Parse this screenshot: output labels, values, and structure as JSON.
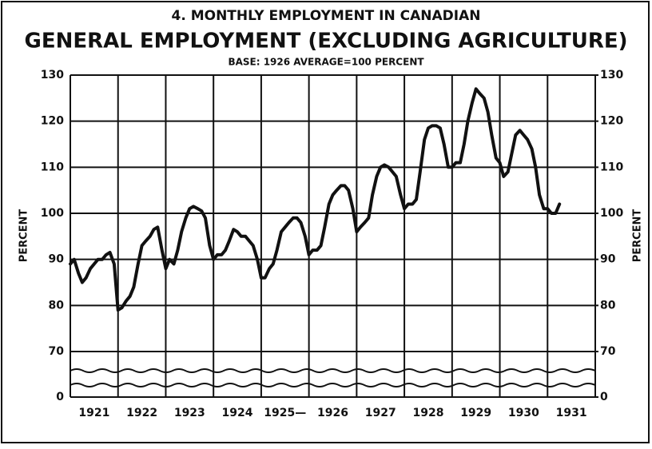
{
  "chart_data": {
    "type": "line",
    "title": "4. MONTHLY EMPLOYMENT IN CANADIAN",
    "subtitle": "GENERAL EMPLOYMENT (EXCLUDING AGRICULTURE)",
    "note": "BASE: 1926 AVERAGE=100 PERCENT",
    "ylabel": "PERCENT",
    "y2label": "PERCENT",
    "year_labels": [
      "1921",
      "1922",
      "1923",
      "1924",
      "1925—",
      "1926",
      "1927",
      "1928",
      "1929",
      "1930",
      "1931"
    ],
    "xlim": [
      1921,
      1932
    ],
    "xticks": [
      1921,
      1922,
      1923,
      1924,
      1925,
      1926,
      1927,
      1928,
      1929,
      1930,
      1931,
      1932
    ],
    "ylim": [
      70,
      130
    ],
    "yticks": [
      0,
      70,
      80,
      90,
      100,
      110,
      120,
      130
    ],
    "y2lim": [
      70,
      130
    ],
    "y2ticks": [
      0,
      70,
      80,
      90,
      100,
      110,
      120,
      130
    ],
    "grid": true,
    "axis_break": true,
    "color": "#111111",
    "x": [
      1921,
      1921.08,
      1921.17,
      1921.25,
      1921.33,
      1921.42,
      1921.5,
      1921.58,
      1921.67,
      1921.75,
      1921.83,
      1921.92,
      1922,
      1922.08,
      1922.17,
      1922.25,
      1922.33,
      1922.42,
      1922.5,
      1922.58,
      1922.67,
      1922.75,
      1922.83,
      1922.92,
      1923,
      1923.08,
      1923.17,
      1923.25,
      1923.33,
      1923.42,
      1923.5,
      1923.58,
      1923.67,
      1923.75,
      1923.83,
      1923.92,
      1924,
      1924.08,
      1924.17,
      1924.25,
      1924.33,
      1924.42,
      1924.5,
      1924.58,
      1924.67,
      1924.75,
      1924.83,
      1924.92,
      1925,
      1925.08,
      1925.17,
      1925.25,
      1925.33,
      1925.42,
      1925.5,
      1925.58,
      1925.67,
      1925.75,
      1925.83,
      1925.92,
      1926,
      1926.08,
      1926.17,
      1926.25,
      1926.33,
      1926.42,
      1926.5,
      1926.58,
      1926.67,
      1926.75,
      1926.83,
      1926.92,
      1927,
      1927.08,
      1927.17,
      1927.25,
      1927.33,
      1927.42,
      1927.5,
      1927.58,
      1927.67,
      1927.75,
      1927.83,
      1927.92,
      1928,
      1928.08,
      1928.17,
      1928.25,
      1928.33,
      1928.42,
      1928.5,
      1928.58,
      1928.67,
      1928.75,
      1928.83,
      1928.92,
      1929,
      1929.08,
      1929.17,
      1929.25,
      1929.33,
      1929.42,
      1929.5,
      1929.58,
      1929.67,
      1929.75,
      1929.83,
      1929.92,
      1930,
      1930.08,
      1930.17,
      1930.25,
      1930.33,
      1930.42,
      1930.5,
      1930.58,
      1930.67,
      1930.75,
      1930.83,
      1930.92,
      1931,
      1931.08,
      1931.17,
      1931.25
    ],
    "values": [
      89,
      90,
      87,
      85,
      86,
      88,
      89,
      90,
      90,
      91,
      91.5,
      89,
      79,
      79.5,
      81,
      82,
      84,
      89,
      93,
      94,
      95,
      96.5,
      97,
      92,
      88,
      90,
      89,
      92,
      96,
      99,
      101,
      101.5,
      101,
      100.5,
      99,
      93,
      90,
      91,
      91,
      92,
      94,
      96.5,
      96,
      95,
      95,
      94,
      93,
      90,
      86,
      86,
      88,
      89,
      92,
      96,
      97,
      98,
      99,
      99,
      98,
      95,
      91,
      92,
      92,
      93,
      97,
      102,
      104,
      105,
      106,
      106,
      105,
      101,
      96,
      97,
      98,
      99,
      104,
      108,
      110,
      110.5,
      110,
      109,
      108,
      104,
      101,
      102,
      102,
      103,
      109,
      116,
      118.5,
      119,
      119,
      118.5,
      115,
      110,
      110,
      111,
      111,
      115,
      120,
      124,
      127,
      126,
      125,
      122,
      117,
      112,
      111,
      108,
      109,
      113,
      117,
      118,
      117,
      116,
      114,
      110,
      104,
      101,
      101,
      100,
      100,
      102
    ]
  }
}
